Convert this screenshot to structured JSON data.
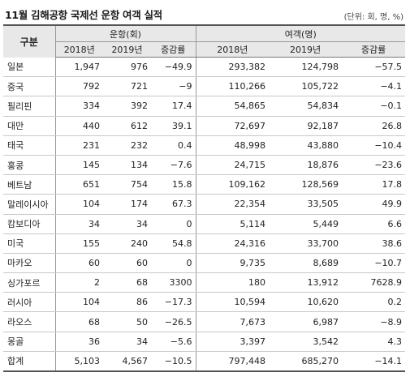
{
  "title": "11월 김해공항 국제선 운항 여객 실적",
  "unit_note": "(단위: 회, 명, %)",
  "header": {
    "category": "구분",
    "flights_group": "운항(회)",
    "passengers_group": "여객(명)",
    "y2018": "2018년",
    "y2019": "2019년",
    "change": "증감률"
  },
  "rows": [
    {
      "country": "일본",
      "f2018": "1,947",
      "f2019": "976",
      "fchg": "−49.9",
      "p2018": "293,382",
      "p2019": "124,798",
      "pchg": "−57.5"
    },
    {
      "country": "중국",
      "f2018": "792",
      "f2019": "721",
      "fchg": "−9",
      "p2018": "110,266",
      "p2019": "105,722",
      "pchg": "−4.1"
    },
    {
      "country": "필리핀",
      "f2018": "334",
      "f2019": "392",
      "fchg": "17.4",
      "p2018": "54,865",
      "p2019": "54,834",
      "pchg": "−0.1"
    },
    {
      "country": "대만",
      "f2018": "440",
      "f2019": "612",
      "fchg": "39.1",
      "p2018": "72,697",
      "p2019": "92,187",
      "pchg": "26.8"
    },
    {
      "country": "태국",
      "f2018": "231",
      "f2019": "232",
      "fchg": "0.4",
      "p2018": "48,998",
      "p2019": "43,880",
      "pchg": "−10.4"
    },
    {
      "country": "홍콩",
      "f2018": "145",
      "f2019": "134",
      "fchg": "−7.6",
      "p2018": "24,715",
      "p2019": "18,876",
      "pchg": "−23.6"
    },
    {
      "country": "베트남",
      "f2018": "651",
      "f2019": "754",
      "fchg": "15.8",
      "p2018": "109,162",
      "p2019": "128,569",
      "pchg": "17.8"
    },
    {
      "country": "말레이시아",
      "f2018": "104",
      "f2019": "174",
      "fchg": "67.3",
      "p2018": "22,354",
      "p2019": "33,505",
      "pchg": "49.9"
    },
    {
      "country": "캄보디아",
      "f2018": "34",
      "f2019": "34",
      "fchg": "0",
      "p2018": "5,114",
      "p2019": "5,449",
      "pchg": "6.6"
    },
    {
      "country": "미국",
      "f2018": "155",
      "f2019": "240",
      "fchg": "54.8",
      "p2018": "24,316",
      "p2019": "33,700",
      "pchg": "38.6"
    },
    {
      "country": "마카오",
      "f2018": "60",
      "f2019": "60",
      "fchg": "0",
      "p2018": "9,735",
      "p2019": "8,689",
      "pchg": "−10.7"
    },
    {
      "country": "싱가포르",
      "f2018": "2",
      "f2019": "68",
      "fchg": "3300",
      "p2018": "180",
      "p2019": "13,912",
      "pchg": "7628.9"
    },
    {
      "country": "러시아",
      "f2018": "104",
      "f2019": "86",
      "fchg": "−17.3",
      "p2018": "10,594",
      "p2019": "10,620",
      "pchg": "0.2"
    },
    {
      "country": "라오스",
      "f2018": "68",
      "f2019": "50",
      "fchg": "−26.5",
      "p2018": "7,673",
      "p2019": "6,987",
      "pchg": "−8.9"
    },
    {
      "country": "몽골",
      "f2018": "36",
      "f2019": "34",
      "fchg": "−5.6",
      "p2018": "3,397",
      "p2019": "3,542",
      "pchg": "4.3"
    }
  ],
  "total": {
    "country": "합계",
    "f2018": "5,103",
    "f2019": "4,567",
    "fchg": "−10.5",
    "p2018": "797,448",
    "p2019": "685,270",
    "pchg": "−14.1"
  }
}
